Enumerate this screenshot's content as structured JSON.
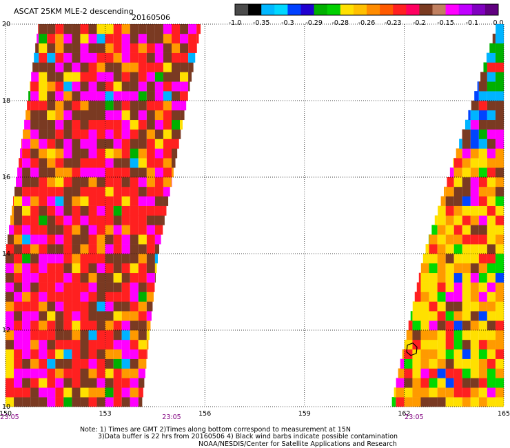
{
  "header": {
    "title": "ASCAT 25KM MLE-2 descending",
    "date": "20160506"
  },
  "colorbar": {
    "colors": [
      "#4a4a4a",
      "#000000",
      "#00b7ff",
      "#00d7ff",
      "#0040ff",
      "#2000d0",
      "#00b000",
      "#00d000",
      "#ffe000",
      "#ffc000",
      "#ff8c00",
      "#ff5a00",
      "#ff2020",
      "#ff0060",
      "#7a3a20",
      "#c08060",
      "#ff00ff",
      "#c000ff",
      "#8000c0",
      "#600080"
    ],
    "tick_labels": [
      "-1.0",
      "-0.35",
      "-0.3",
      "-0.29",
      "-0.28",
      "-0.26",
      "-0.23",
      "-0.2",
      "-0.15",
      "-0.1",
      "0.0"
    ]
  },
  "chart_data": {
    "type": "heatmap",
    "xlabel": "",
    "ylabel": "",
    "xlim": [
      150,
      165
    ],
    "ylim": [
      10,
      20
    ],
    "x_ticks": [
      "150",
      "153",
      "156",
      "159",
      "162",
      "165"
    ],
    "y_ticks": [
      "10",
      "12",
      "14",
      "16",
      "18",
      "20"
    ],
    "grid": true,
    "time_labels": [
      {
        "lon": 150.0,
        "text": "23:05"
      },
      {
        "lon": 155.0,
        "text": "23:05"
      },
      {
        "lon": 162.3,
        "text": "23:05"
      }
    ],
    "swaths": [
      {
        "name": "west",
        "edges": [
          [
            10,
            150.0,
            154.1
          ],
          [
            14,
            150.0,
            154.6
          ],
          [
            20,
            151.0,
            155.9
          ]
        ]
      },
      {
        "name": "east",
        "edges": [
          [
            10,
            161.6,
            165.0
          ],
          [
            14,
            162.6,
            165.0
          ],
          [
            20,
            164.8,
            165.0
          ]
        ]
      }
    ],
    "value_distribution": {
      "west": {
        "-0.2": 0.35,
        "-0.15": 0.25,
        "-0.1": 0.2,
        "-0.23": 0.1,
        "-0.26": 0.06,
        "-0.29": 0.02,
        "-0.35": 0.02
      },
      "east_north": {
        "-0.35": 0.25,
        "-0.3": 0.15,
        "-0.29": 0.15,
        "-0.15": 0.2,
        "-0.2": 0.15,
        "-0.1": 0.1
      },
      "east_south": {
        "-0.26": 0.3,
        "-0.23": 0.3,
        "-0.2": 0.15,
        "-0.28": 0.1,
        "-0.15": 0.08,
        "-0.1": 0.05,
        "-0.3": 0.02
      }
    },
    "wind_barb_marker": {
      "lon": 162.2,
      "lat": 11.5
    }
  },
  "footer": {
    "note1": "Note: 1) Times are GMT 2)Times along bottom correspond to measurement at 15N",
    "note2": "3)Data buffer is 22 hrs from 20160506 4) Black wind barbs indicate possible contamination",
    "credit": "NOAA/NESDIS/Center for Satellite Applications and Research"
  }
}
